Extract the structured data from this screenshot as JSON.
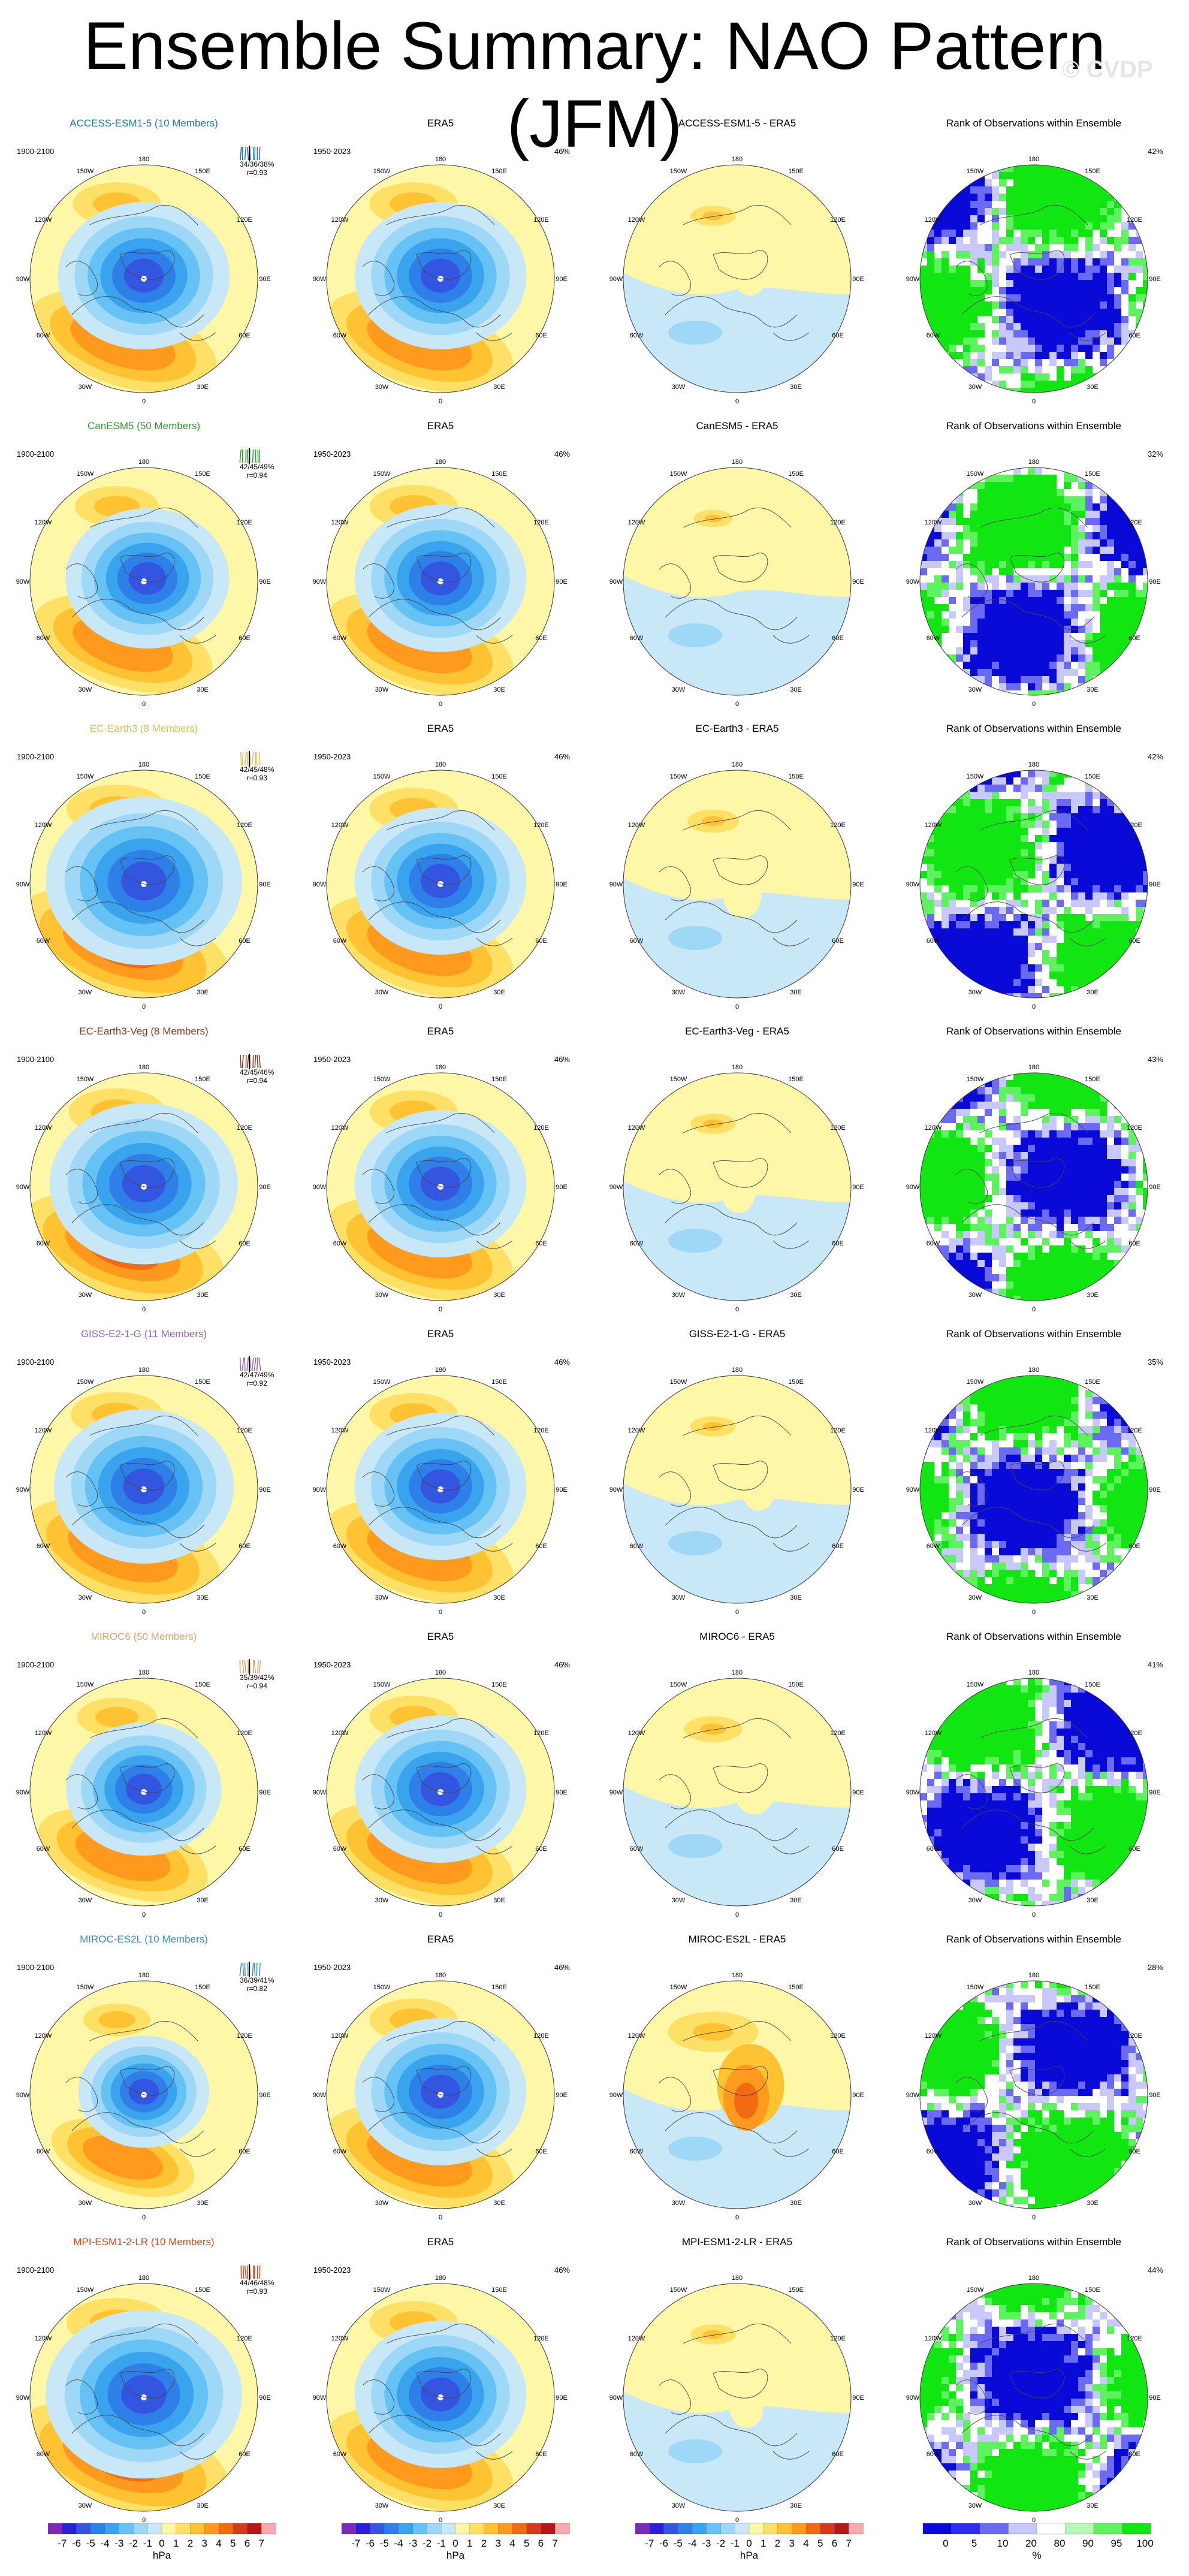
{
  "title": "Ensemble Summary: NAO Pattern (JFM)",
  "watermark": "© CVDP",
  "rank_title": "Rank of Observations within Ensemble",
  "obs_name": "ERA5",
  "model_period": "1900-2100",
  "obs_period": "1950-2023",
  "obs_pct": "46%",
  "lon_labels": {
    "top": "180",
    "b150w": "150W",
    "b150e": "150E",
    "l120w": "120W",
    "r120e": "120E",
    "l90w": "90W",
    "r90e": "90E",
    "l60w": "60W",
    "r60e": "60E",
    "b30w": "30W",
    "b30e": "30E",
    "bottom": "0"
  },
  "rows": [
    {
      "model": "ACCESS-ESM1-5",
      "members": "(10 Members)",
      "model_title": "ACCESS-ESM1-5 (10 Members)",
      "diff_title": "ACCESS-ESM1-5 - ERA5",
      "stats": "34/36/38%",
      "corr": "r=0.93",
      "rank_pct": "42%",
      "color": "#1f77b4",
      "model_amp": 1.05,
      "diff_amp": 0.35,
      "low_shift": 0,
      "seed": 1
    },
    {
      "model": "CanESM5",
      "members": "(50 Members)",
      "model_title": "CanESM5 (50 Members)",
      "diff_title": "CanESM5 - ERA5",
      "stats": "42/45/49%",
      "corr": "r=0.94",
      "rank_pct": "32%",
      "color": "#2ca02c",
      "model_amp": 1.0,
      "diff_amp": 0.3,
      "low_shift": 0.1,
      "seed": 2
    },
    {
      "model": "EC-Earth3",
      "members": "(8 Members)",
      "model_title": "EC-Earth3 (8 Members)",
      "diff_title": "EC-Earth3 - ERA5",
      "stats": "42/45/48%",
      "corr": "r=0.93",
      "rank_pct": "42%",
      "color": "#d4c45a",
      "model_amp": 1.2,
      "diff_amp": 0.4,
      "low_shift": 0,
      "seed": 3
    },
    {
      "model": "EC-Earth3-Veg",
      "members": "(8 Members)",
      "model_title": "EC-Earth3-Veg (8 Members)",
      "diff_title": "EC-Earth3-Veg - ERA5",
      "stats": "42/45/46%",
      "corr": "r=0.94",
      "rank_pct": "43%",
      "color": "#8b3a1a",
      "model_amp": 1.15,
      "diff_amp": 0.35,
      "low_shift": 0,
      "seed": 4
    },
    {
      "model": "GISS-E2-1-G",
      "members": "(11 Members)",
      "model_title": "GISS-E2-1-G (11 Members)",
      "diff_title": "GISS-E2-1-G - ERA5",
      "stats": "42/47/49%",
      "corr": "r=0.92",
      "rank_pct": "35%",
      "color": "#9467bd",
      "model_amp": 1.1,
      "diff_amp": 0.35,
      "low_shift": 0,
      "seed": 5
    },
    {
      "model": "MIROC6",
      "members": "(50 Members)",
      "model_title": "MIROC6 (50 Members)",
      "diff_title": "MIROC6 - ERA5",
      "stats": "35/39/42%",
      "corr": "r=0.94",
      "rank_pct": "41%",
      "color": "#e0a36a",
      "model_amp": 0.95,
      "diff_amp": 0.45,
      "low_shift": 0,
      "seed": 6
    },
    {
      "model": "MIROC-ES2L",
      "members": "(10 Members)",
      "model_title": "MIROC-ES2L (10 Members)",
      "diff_title": "MIROC-ES2L - ERA5",
      "stats": "36/39/41%",
      "corr": "r=0.82",
      "rank_pct": "28%",
      "color": "#3a8fb7",
      "model_amp": 0.8,
      "diff_amp": 0.7,
      "low_shift": 0,
      "seed": 7
    },
    {
      "model": "MPI-ESM1-2-LR",
      "members": "(10 Members)",
      "model_title": "MPI-ESM1-2-LR (10 Members)",
      "diff_title": "MPI-ESM1-2-LR - ERA5",
      "stats": "44/46/48%",
      "corr": "r=0.93",
      "rank_pct": "44%",
      "color": "#d84a1b",
      "model_amp": 1.2,
      "diff_amp": 0.35,
      "low_shift": 0,
      "seed": 8
    }
  ],
  "colorbars": {
    "hpa_labels": [
      "-7",
      "-6",
      "-5",
      "-4",
      "-3",
      "-2",
      "-1",
      "0",
      "1",
      "2",
      "3",
      "4",
      "5",
      "6",
      "7"
    ],
    "hpa_unit": "hPa",
    "pct_labels": [
      "0",
      "5",
      "10",
      "20",
      "80",
      "90",
      "95",
      "100"
    ],
    "pct_unit": "%",
    "hpa_colors": [
      "#7b2ab8",
      "#2a1fd6",
      "#3455e0",
      "#2f7fe8",
      "#3aa3ee",
      "#66c2f5",
      "#9fd8f7",
      "#c8e8f8",
      "#fff7a8",
      "#ffe066",
      "#ffc233",
      "#ff9a1f",
      "#f26a12",
      "#d9381e",
      "#b8171a",
      "#f7a8b0"
    ],
    "pct_colors": [
      "#0a0ad8",
      "#2c2cf2",
      "#6a6af5",
      "#c8c8fa",
      "#ffffff",
      "#b8f7b8",
      "#5ef25e",
      "#12e612"
    ]
  }
}
